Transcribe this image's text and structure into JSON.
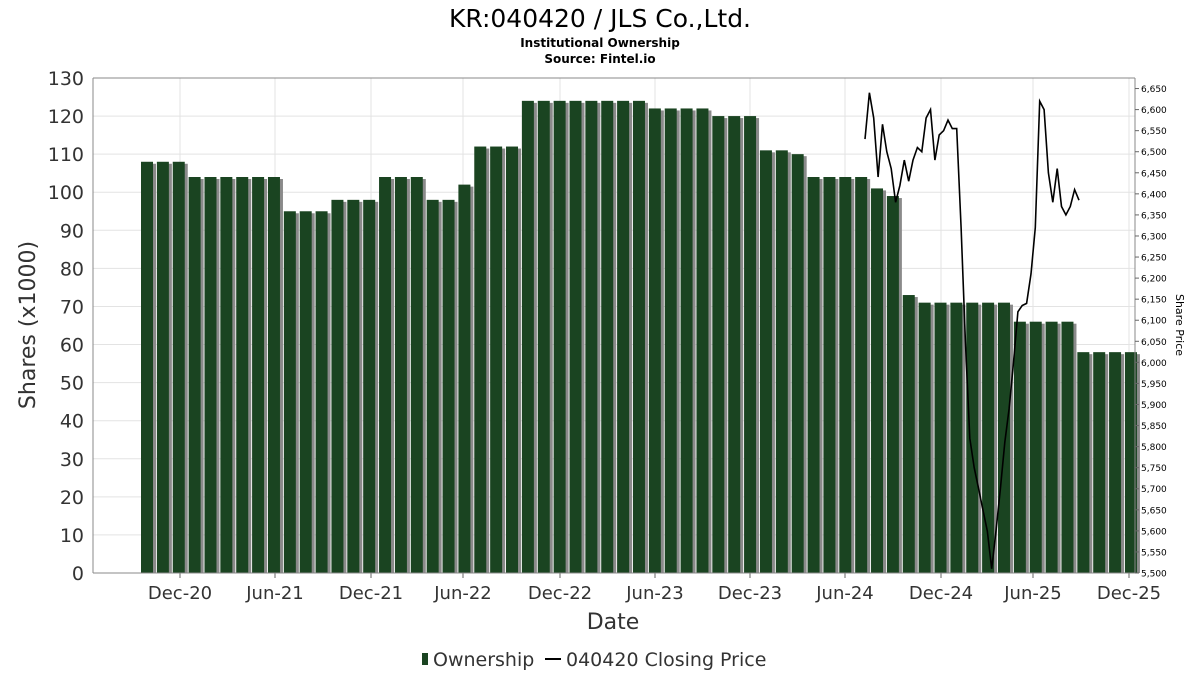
{
  "header": {
    "title": "KR:040420 / JLS Co.,Ltd.",
    "subtitle": "Institutional Ownership",
    "source": "Source: Fintel.io"
  },
  "legend": {
    "ownership_label": "Ownership",
    "price_label": "040420 Closing Price"
  },
  "colors": {
    "bar": "#1a4421",
    "bar_shadow": "#8a8a8a",
    "price_line": "#000000",
    "grid": "#e3e3e3"
  },
  "chart_data": {
    "type": "bar",
    "title": "KR:040420 / JLS Co.,Ltd.",
    "xlabel": "Date",
    "ylabel": "Shares (x1000)",
    "y2label": "Share Price",
    "ylim": [
      0,
      130
    ],
    "y2lim": [
      5500,
      6675
    ],
    "x_ticks": [
      "Dec-20",
      "Jun-21",
      "Dec-21",
      "Jun-22",
      "Dec-22",
      "Jun-23",
      "Dec-23",
      "Jun-24",
      "Dec-24",
      "Jun-25",
      "Dec-25"
    ],
    "y_ticks": [
      0,
      10,
      20,
      30,
      40,
      50,
      60,
      70,
      80,
      90,
      100,
      110,
      120,
      130
    ],
    "y2_ticks": [
      "5,500",
      "5,550",
      "5,600",
      "5,650",
      "5,700",
      "5,750",
      "5,800",
      "5,850",
      "5,900",
      "5,950",
      "6,000",
      "6,050",
      "6,100",
      "6,150",
      "6,200",
      "6,250",
      "6,300",
      "6,350",
      "6,400",
      "6,450",
      "6,500",
      "6,550",
      "6,600",
      "6,650"
    ],
    "grid": true,
    "legend_position": "bottom",
    "series": [
      {
        "name": "Ownership",
        "type": "bar",
        "values": [
          108,
          108,
          108,
          104,
          104,
          104,
          104,
          104,
          104,
          95,
          95,
          95,
          98,
          98,
          98,
          104,
          104,
          104,
          98,
          98,
          102,
          112,
          112,
          112,
          124,
          124,
          124,
          124,
          124,
          124,
          124,
          124,
          122,
          122,
          122,
          122,
          120,
          120,
          120,
          111,
          111,
          110,
          104,
          104,
          104,
          104,
          101,
          99,
          73,
          71,
          71,
          71,
          71,
          71,
          71,
          66,
          66,
          66,
          66,
          58,
          58,
          58,
          58
        ]
      },
      {
        "name": "040420 Closing Price",
        "type": "line",
        "values": [
          6530,
          6640,
          6580,
          6440,
          6565,
          6500,
          6460,
          6380,
          6420,
          6480,
          6430,
          6480,
          6510,
          6500,
          6580,
          6600,
          6480,
          6540,
          6550,
          6575,
          6555,
          6555,
          6320,
          6050,
          5820,
          5750,
          5700,
          5650,
          5600,
          5510,
          5600,
          5700,
          5810,
          5890,
          6000,
          6120,
          6135,
          6140,
          6210,
          6320,
          6620,
          6600,
          6450,
          6380,
          6460,
          6370,
          6350,
          6370,
          6410,
          6385
        ]
      }
    ]
  }
}
